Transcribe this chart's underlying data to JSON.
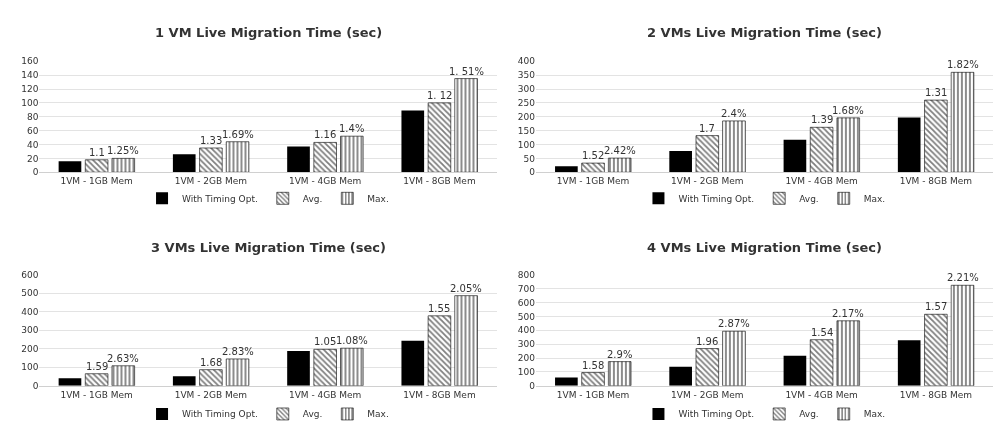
{
  "chart_data": [
    {
      "type": "bar",
      "title": "1 VM Live Migration Time (sec)",
      "categories": [
        "1VM - 1GB Mem",
        "1VM - 2GB Mem",
        "1VM - 4GB Mem",
        "1VM - 8GB Mem"
      ],
      "ylim": [
        0,
        160
      ],
      "yticks": [
        0,
        20,
        40,
        60,
        80,
        100,
        120,
        140,
        160
      ],
      "grid": "y",
      "legend": "bottom",
      "series": [
        {
          "name": "With Timing Opt.",
          "color": "#000000",
          "values": [
            16,
            26,
            37,
            89
          ]
        },
        {
          "name": "Avg.",
          "color": "#000000",
          "values": [
            18,
            35,
            43,
            100
          ]
        },
        {
          "name": "Max.",
          "color": "#000000",
          "values": [
            20,
            44,
            52,
            135
          ]
        }
      ],
      "annotations": [
        "1.1",
        "1.25%",
        "1.33",
        "1.69%",
        "1.16",
        "1.4%",
        "1. 12",
        "1. 51%"
      ]
    },
    {
      "type": "bar",
      "title": "2 VMs Live Migration Time (sec)",
      "categories": [
        "1VM - 1GB Mem",
        "1VM - 2GB Mem",
        "1VM - 4GB Mem",
        "1VM - 8GB Mem"
      ],
      "ylim": [
        0,
        400
      ],
      "yticks": [
        0,
        50,
        100,
        150,
        200,
        250,
        300,
        350,
        400
      ],
      "grid": "y",
      "legend": "bottom",
      "series": [
        {
          "name": "With Timing Opt.",
          "color": "#000000",
          "values": [
            22,
            77,
            117,
            197
          ]
        },
        {
          "name": "Avg.",
          "color": "#000000",
          "values": [
            33,
            132,
            162,
            260
          ]
        },
        {
          "name": "Max.",
          "color": "#000000",
          "values": [
            51,
            185,
            196,
            360
          ]
        }
      ],
      "annotations": [
        "1.52",
        "2.42%",
        "1.7",
        "2.4%",
        "1.39",
        "1.68%",
        "1.31",
        "1.82%"
      ]
    },
    {
      "type": "bar",
      "title": "3 VMs Live Migration Time (sec)",
      "categories": [
        "1VM - 1GB Mem",
        "1VM - 2GB Mem",
        "1VM - 4GB Mem",
        "1VM - 8GB Mem"
      ],
      "ylim": [
        0,
        600
      ],
      "yticks": [
        0,
        100,
        200,
        300,
        400,
        500,
        600
      ],
      "grid": "y",
      "legend": "bottom",
      "series": [
        {
          "name": "With Timing Opt.",
          "color": "#000000",
          "values": [
            40,
            52,
            188,
            243
          ]
        },
        {
          "name": "Avg.",
          "color": "#000000",
          "values": [
            65,
            87,
            197,
            378
          ]
        },
        {
          "name": "Max.",
          "color": "#000000",
          "values": [
            108,
            145,
            203,
            487
          ]
        }
      ],
      "annotations": [
        "1.59",
        "2.63%",
        "1.68",
        "2.83%",
        "1.05",
        "1.08%",
        "1.55",
        "2.05%"
      ]
    },
    {
      "type": "bar",
      "title": "4 VMs Live Migration Time (sec)",
      "categories": [
        "1VM - 1GB Mem",
        "1VM - 2GB Mem",
        "1VM - 4GB Mem",
        "1VM - 8GB Mem"
      ],
      "ylim": [
        0,
        800
      ],
      "yticks": [
        0,
        100,
        200,
        300,
        400,
        500,
        600,
        700,
        800
      ],
      "grid": "y",
      "legend": "bottom",
      "series": [
        {
          "name": "With Timing Opt.",
          "color": "#000000",
          "values": [
            60,
            137,
            216,
            328
          ]
        },
        {
          "name": "Avg.",
          "color": "#000000",
          "values": [
            95,
            268,
            332,
            515
          ]
        },
        {
          "name": "Max.",
          "color": "#000000",
          "values": [
            174,
            393,
            468,
            724
          ]
        }
      ],
      "annotations": [
        "1.58",
        "2.9%",
        "1.96",
        "2.87%",
        "1.54",
        "2.17%",
        "1.57",
        "2.21%"
      ]
    }
  ]
}
